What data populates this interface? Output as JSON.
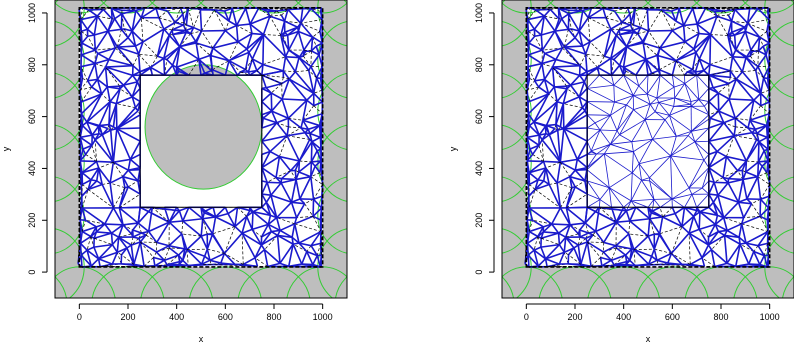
{
  "figure": {
    "panels": [
      "left",
      "right"
    ]
  },
  "chart_data": [
    {
      "type": "scatter",
      "panel": "left",
      "title": "",
      "xlabel": "x",
      "ylabel": "y",
      "xlim": [
        -100,
        1100
      ],
      "ylim": [
        -100,
        1050
      ],
      "xticks": [
        0,
        200,
        400,
        600,
        800,
        1000
      ],
      "yticks": [
        0,
        200,
        400,
        600,
        800,
        1000
      ],
      "tick_labels_x": [
        "0",
        "200",
        "400",
        "600",
        "800",
        "1000"
      ],
      "tick_labels_y": [
        "0",
        "200",
        "400",
        "600",
        "800",
        "1000"
      ],
      "colors": {
        "background": "#bebebe",
        "domain": "#ffffff",
        "circles": "#33cc33",
        "triangulation_solid": "#1a1acc",
        "triangulation_dashed": "#000000",
        "boundary": "#000000"
      },
      "domain_outer": [
        [
          0,
          20
        ],
        [
          1000,
          20
        ],
        [
          1000,
          1020
        ],
        [
          0,
          1020
        ]
      ],
      "hole_rect": [
        [
          250,
          250
        ],
        [
          750,
          250
        ],
        [
          750,
          760
        ],
        [
          250,
          760
        ]
      ],
      "hole_circle": {
        "center": [
          510,
          560
        ],
        "radius": 240
      },
      "interior_points_hole": false
    },
    {
      "type": "scatter",
      "panel": "right",
      "title": "",
      "xlabel": "x",
      "ylabel": "y",
      "xlim": [
        -100,
        1100
      ],
      "ylim": [
        -100,
        1050
      ],
      "xticks": [
        0,
        200,
        400,
        600,
        800,
        1000
      ],
      "yticks": [
        0,
        200,
        400,
        600,
        800,
        1000
      ],
      "tick_labels_x": [
        "0",
        "200",
        "400",
        "600",
        "800",
        "1000"
      ],
      "tick_labels_y": [
        "0",
        "200",
        "400",
        "600",
        "800",
        "1000"
      ],
      "colors": {
        "background": "#bebebe",
        "domain": "#ffffff",
        "circles": "#33cc33",
        "triangulation_solid": "#1a1acc",
        "triangulation_dashed": "#000000",
        "boundary": "#000000"
      },
      "domain_outer": [
        [
          0,
          20
        ],
        [
          1000,
          20
        ],
        [
          1000,
          1020
        ],
        [
          0,
          1020
        ]
      ],
      "hole_rect": [
        [
          250,
          250
        ],
        [
          750,
          250
        ],
        [
          750,
          760
        ],
        [
          250,
          760
        ]
      ],
      "hole_circle": null,
      "interior_points_hole": true
    }
  ]
}
